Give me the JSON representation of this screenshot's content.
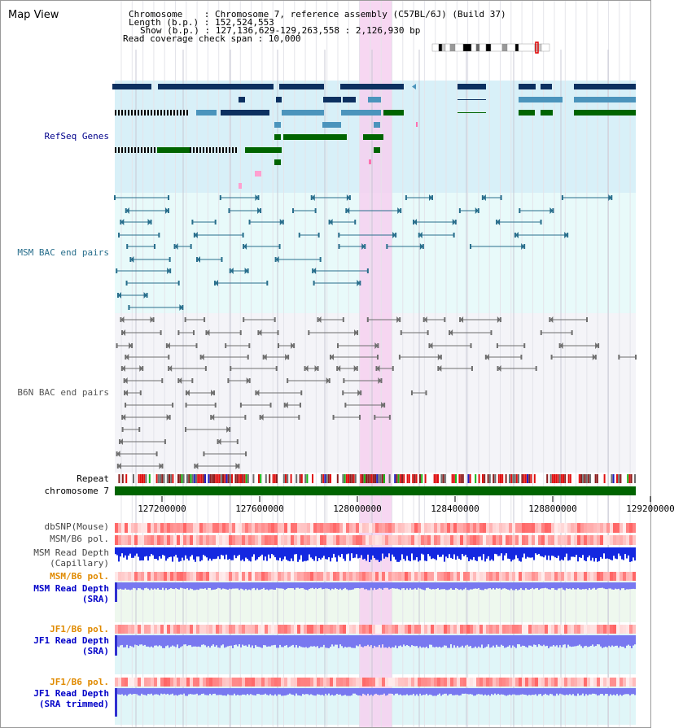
{
  "page": {
    "title": "Map View"
  },
  "info": {
    "chromosome": "Chromosome    : Chromosome 7, reference assembly (C57BL/6J) (Build 37)",
    "length": "Length (b.p.) : 152,524,553",
    "show": "Show (b.p.) : 127,136,629-129,263,558 : 2,126,930 bp",
    "span": "Read coverage check span : 10,000"
  },
  "tracks": {
    "refseq": "RefSeq Genes",
    "msm_bac": "MSM BAC end pairs",
    "b6n_bac": "B6N BAC end pairs",
    "repeat": "Repeat",
    "chromosome": "chromosome 7",
    "dbsnp": "dbSNP(Mouse)",
    "msm_pol": "MSM/B6 pol.",
    "msm_cap_1": "MSM Read Depth",
    "msm_cap_2": "(Capillary)",
    "msm_pol2": "MSM/B6 pol.",
    "msm_sra_1": "MSM Read Depth",
    "msm_sra_2": "(SRA)",
    "jf1_pol": "JF1/B6 pol.",
    "jf1_sra_1": "JF1 Read Depth",
    "jf1_sra_2": "(SRA)",
    "jf1_pol2": "JF1/B6 pol.",
    "jf1_trim_1": "JF1 Read Depth",
    "jf1_trim_2": "(SRA trimmed)"
  },
  "axis": {
    "ticks": [
      "127200000",
      "127600000",
      "128000000",
      "128400000",
      "128800000",
      "129200000"
    ]
  },
  "colors": {
    "refseq_bg": "#d8f0f8",
    "msm_bg": "#e8fafa",
    "b6n_bg": "#f4f4f8",
    "highlight": "#f6d0f0",
    "gene_dark": "#0c3060",
    "gene_mid": "#4b94bc",
    "gene_green": "#006400",
    "bac_msm": "#286e8c",
    "bac_b6n": "#6e6e6e",
    "depth_blue": "#1428e0",
    "depth_light": "#7878f0"
  }
}
